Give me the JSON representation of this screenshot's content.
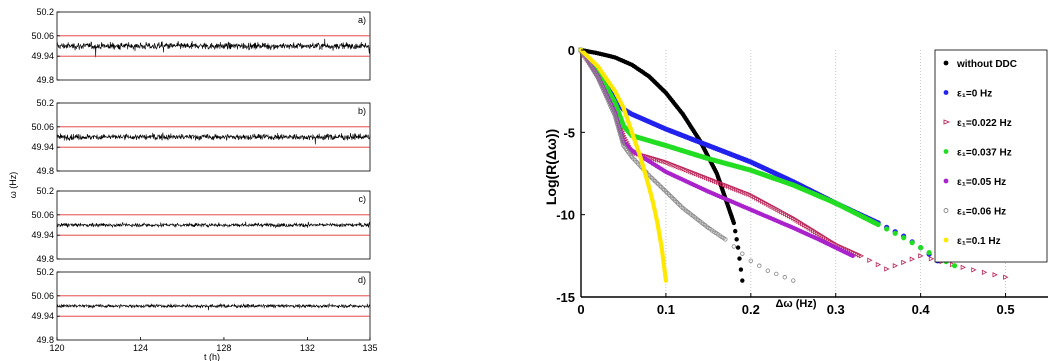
{
  "chart_data": [
    {
      "type": "line",
      "title": "",
      "xlabel": "t (h)",
      "ylabel": "ω (Hz)",
      "xlim": [
        120,
        135
      ],
      "x_ticks": [
        "120",
        "124",
        "128",
        "132",
        "135"
      ],
      "x_tick_values": [
        120,
        124,
        128,
        132,
        135
      ],
      "reference_lines": [
        49.94,
        50.06
      ],
      "reference_line_color": "#e03030",
      "series_color": "#000000",
      "panels": [
        {
          "label": "a)",
          "ylim": [
            49.8,
            50.2
          ],
          "y_ticks": [
            "50.2",
            "50.06",
            "49.94",
            "49.8"
          ],
          "y_tick_values": [
            50.2,
            50.06,
            49.94,
            49.8
          ],
          "noise_std": 0.032,
          "offset": 0.0
        },
        {
          "label": "b)",
          "ylim": [
            49.8,
            50.2
          ],
          "y_ticks": [
            "50.2",
            "50.06",
            "49.94",
            "49.8"
          ],
          "y_tick_values": [
            50.2,
            50.06,
            49.94,
            49.8
          ],
          "noise_std": 0.028,
          "offset": 0.0
        },
        {
          "label": "c)",
          "ylim": [
            49.8,
            50.2
          ],
          "y_ticks": [
            "50.2",
            "50.06",
            "49.94",
            "49.8"
          ],
          "y_tick_values": [
            50.2,
            50.06,
            49.94,
            49.8
          ],
          "noise_std": 0.018,
          "offset": 0.0
        },
        {
          "label": "d)",
          "ylim": [
            49.8,
            50.2
          ],
          "y_ticks": [
            "50.2",
            "50.06",
            "49.94",
            "49.8"
          ],
          "y_tick_values": [
            50.2,
            50.06,
            49.94,
            49.8
          ],
          "noise_std": 0.016,
          "offset": 0.0
        }
      ]
    },
    {
      "type": "scatter",
      "title": "",
      "xlabel": "Δω (Hz)",
      "ylabel": "Log(R(Δω))",
      "xlim": [
        0,
        0.55
      ],
      "ylim": [
        -15,
        0
      ],
      "x_ticks": [
        "0",
        "0.1",
        "0.2",
        "0.3",
        "0.4",
        "0.5"
      ],
      "x_tick_values": [
        0,
        0.1,
        0.2,
        0.3,
        0.4,
        0.5
      ],
      "y_ticks": [
        "0",
        "-5",
        "-10",
        "-15"
      ],
      "y_tick_values": [
        0,
        -5,
        -10,
        -15
      ],
      "grid": "x dotted",
      "legend_position": "top-right",
      "series": [
        {
          "name": "without DDC",
          "color": "#000000",
          "marker": "dot",
          "x": [
            0,
            0.02,
            0.04,
            0.06,
            0.08,
            0.1,
            0.12,
            0.14,
            0.16,
            0.17,
            0.18,
            0.185,
            0.19
          ],
          "y": [
            0,
            -0.2,
            -0.45,
            -0.9,
            -1.6,
            -2.6,
            -3.9,
            -5.5,
            -7.5,
            -9.0,
            -10.5,
            -12.0,
            -14.0
          ]
        },
        {
          "name": "ε₁=0 Hz",
          "color": "#2222ee",
          "marker": "dot",
          "x": [
            0,
            0.02,
            0.04,
            0.05,
            0.06,
            0.1,
            0.15,
            0.2,
            0.25,
            0.3,
            0.35,
            0.38,
            0.4,
            0.42
          ],
          "y": [
            0,
            -1.2,
            -3.0,
            -3.6,
            -3.9,
            -4.8,
            -5.8,
            -6.8,
            -8.0,
            -9.3,
            -10.5,
            -11.3,
            -12.0,
            -12.8
          ]
        },
        {
          "name": "ε₁=0.022 Hz",
          "color": "#bb2255",
          "marker": "triangle",
          "x": [
            0,
            0.02,
            0.04,
            0.05,
            0.06,
            0.1,
            0.15,
            0.2,
            0.25,
            0.3,
            0.33,
            0.36,
            0.4,
            0.45,
            0.5
          ],
          "y": [
            0,
            -1.5,
            -3.5,
            -5.2,
            -6.2,
            -6.8,
            -7.8,
            -8.8,
            -10.2,
            -11.8,
            -12.5,
            -13.3,
            -12.5,
            -13.2,
            -13.8
          ]
        },
        {
          "name": "ε₁=0.037 Hz",
          "color": "#22dd22",
          "marker": "dot",
          "x": [
            0,
            0.02,
            0.04,
            0.05,
            0.06,
            0.1,
            0.15,
            0.2,
            0.25,
            0.3,
            0.35,
            0.38,
            0.4,
            0.42,
            0.44
          ],
          "y": [
            0,
            -1.3,
            -3.2,
            -4.6,
            -5.2,
            -5.8,
            -6.6,
            -7.3,
            -8.2,
            -9.3,
            -10.6,
            -11.4,
            -12.0,
            -12.6,
            -13.1
          ]
        },
        {
          "name": "ε₁=0.05 Hz",
          "color": "#aa22cc",
          "marker": "dot",
          "x": [
            0,
            0.02,
            0.04,
            0.05,
            0.06,
            0.1,
            0.15,
            0.2,
            0.25,
            0.28,
            0.3,
            0.32
          ],
          "y": [
            0,
            -1.6,
            -3.8,
            -5.6,
            -6.1,
            -7.4,
            -8.6,
            -9.7,
            -10.8,
            -11.5,
            -12.0,
            -12.5
          ]
        },
        {
          "name": "ε₁=0.06 Hz",
          "color": "#888888",
          "marker": "circle",
          "x": [
            0,
            0.02,
            0.04,
            0.05,
            0.06,
            0.08,
            0.1,
            0.12,
            0.15,
            0.17,
            0.2,
            0.22,
            0.25
          ],
          "y": [
            0,
            -1.7,
            -4.0,
            -5.8,
            -6.5,
            -7.6,
            -8.6,
            -9.6,
            -10.8,
            -11.5,
            -12.8,
            -13.4,
            -14.0
          ]
        },
        {
          "name": "ε₁=0.1 Hz",
          "color": "#ffe800",
          "marker": "dot",
          "x": [
            0,
            0.02,
            0.04,
            0.05,
            0.06,
            0.07,
            0.08,
            0.085,
            0.09,
            0.095,
            0.1
          ],
          "y": [
            0,
            -1.0,
            -2.5,
            -3.5,
            -5.0,
            -6.5,
            -8.3,
            -9.3,
            -10.5,
            -12.0,
            -14.0
          ]
        }
      ]
    }
  ]
}
